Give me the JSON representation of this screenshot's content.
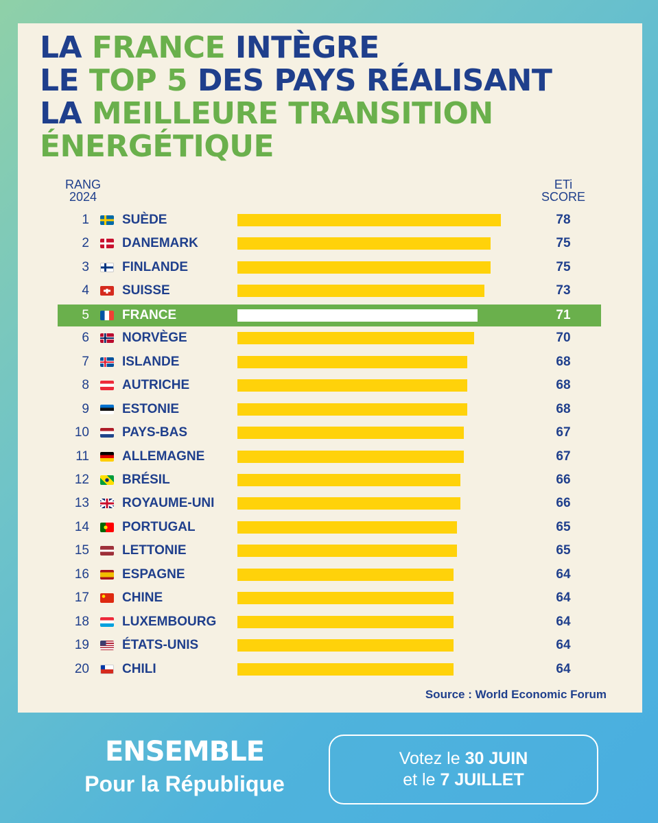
{
  "title_lines": [
    [
      {
        "t": "LA ",
        "g": false
      },
      {
        "t": "FRANCE",
        "g": true
      },
      {
        "t": " INTÈGRE",
        "g": false
      }
    ],
    [
      {
        "t": "LE ",
        "g": false
      },
      {
        "t": "TOP 5",
        "g": true
      },
      {
        "t": " DES PAYS RÉALISANT",
        "g": false
      }
    ],
    [
      {
        "t": "LA ",
        "g": false
      },
      {
        "t": "MEILLEURE TRANSITION",
        "g": true
      }
    ],
    [
      {
        "t": "ÉNERGÉTIQUE",
        "g": true
      }
    ]
  ],
  "header_rank": [
    "RANG",
    "2024"
  ],
  "header_score": [
    "ETi",
    "SCORE"
  ],
  "chart_data": {
    "type": "bar",
    "orientation": "horizontal",
    "highlight_category": "FRANCE",
    "ranks": [
      "1",
      "2",
      "3",
      "4",
      "5",
      "6",
      "7",
      "8",
      "9",
      "10",
      "11",
      "12",
      "13",
      "14",
      "15",
      "16",
      "17",
      "18",
      "19",
      "20"
    ],
    "categories": [
      "SUÈDE",
      "DANEMARK",
      "FINLANDE",
      "SUISSE",
      "FRANCE",
      "NORVÈGE",
      "ISLANDE",
      "AUTRICHE",
      "ESTONIE",
      "PAYS-BAS",
      "ALLEMAGNE",
      "BRÉSIL",
      "ROYAUME-UNI",
      "PORTUGAL",
      "LETTONIE",
      "ESPAGNE",
      "CHINE",
      "LUXEMBOURG",
      "ÉTATS-UNIS",
      "CHILI"
    ],
    "values": [
      78,
      75,
      75,
      73,
      71,
      70,
      68,
      68,
      68,
      67,
      67,
      66,
      66,
      65,
      65,
      64,
      64,
      64,
      64,
      64
    ],
    "flags": [
      "flag-sweden-icon",
      "flag-denmark-icon",
      "flag-finland-icon",
      "flag-switzerland-icon",
      "flag-france-icon",
      "flag-norway-icon",
      "flag-iceland-icon",
      "flag-austria-icon",
      "flag-estonia-icon",
      "flag-netherlands-icon",
      "flag-germany-icon",
      "flag-brazil-icon",
      "flag-uk-icon",
      "flag-portugal-icon",
      "flag-latvia-icon",
      "flag-spain-icon",
      "flag-china-icon",
      "flag-luxembourg-icon",
      "flag-usa-icon",
      "flag-chile-icon"
    ],
    "colors": {
      "bar": "#ffd20a",
      "highlight_row": "#6ab04c",
      "highlight_bar": "#ffffff",
      "text": "#1f3f8c"
    }
  },
  "source": "Source : World Economic Forum",
  "brand": {
    "line1": "ENSEMBLE",
    "line2": "Pour la République"
  },
  "vote": {
    "l1_pre": "Votez le ",
    "l1_bold": "30 JUIN",
    "l2_pre": "et le ",
    "l2_bold": "7 JUILLET"
  }
}
